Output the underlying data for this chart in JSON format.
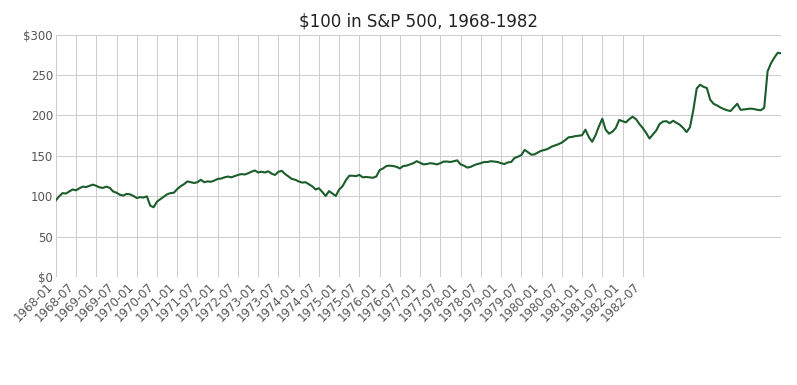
{
  "title": "$100 in S&P 500, 1968-1982",
  "line_color": "#1a5c2a",
  "line_width": 1.5,
  "background_color": "#ffffff",
  "grid_color": "#cccccc",
  "ylim": [
    0,
    300
  ],
  "yticks": [
    0,
    50,
    100,
    150,
    200,
    250,
    300
  ],
  "ytick_labels": [
    "$0",
    "50",
    "100",
    "150",
    "200",
    "250",
    "$300"
  ],
  "title_fontsize": 12,
  "tick_fontsize": 8.5,
  "values": [
    95.0,
    100.0,
    104.0,
    103.5,
    106.0,
    108.5,
    107.5,
    110.0,
    112.0,
    111.5,
    113.0,
    114.5,
    113.0,
    111.0,
    110.5,
    112.0,
    110.5,
    106.0,
    104.5,
    102.0,
    101.0,
    103.0,
    102.5,
    100.5,
    98.0,
    99.0,
    98.5,
    100.0,
    88.5,
    86.5,
    93.5,
    96.5,
    99.5,
    102.5,
    104.0,
    104.5,
    109.0,
    112.5,
    115.0,
    118.5,
    117.5,
    116.5,
    117.5,
    120.5,
    117.5,
    118.5,
    118.0,
    119.5,
    121.5,
    122.0,
    123.5,
    124.5,
    123.5,
    125.0,
    126.5,
    127.5,
    127.0,
    128.5,
    130.5,
    132.0,
    129.5,
    130.5,
    129.5,
    131.0,
    128.0,
    126.5,
    130.5,
    131.5,
    127.5,
    124.5,
    121.5,
    120.5,
    118.5,
    117.0,
    117.5,
    115.0,
    112.5,
    108.5,
    110.0,
    105.5,
    100.5,
    106.5,
    103.5,
    100.5,
    108.5,
    112.5,
    120.0,
    125.5,
    125.5,
    125.0,
    126.5,
    123.5,
    124.0,
    123.5,
    123.0,
    124.5,
    132.5,
    134.5,
    137.5,
    138.0,
    137.5,
    136.5,
    134.5,
    137.5,
    138.0,
    139.5,
    141.0,
    143.5,
    141.5,
    139.5,
    140.0,
    141.0,
    140.5,
    139.5,
    141.0,
    143.0,
    143.0,
    142.5,
    143.5,
    144.5,
    139.5,
    138.0,
    135.5,
    136.5,
    138.5,
    140.0,
    141.0,
    142.5,
    142.5,
    143.5,
    143.0,
    142.5,
    141.0,
    140.0,
    142.0,
    142.5,
    147.5,
    149.0,
    151.0,
    157.5,
    154.5,
    151.5,
    152.0,
    154.5,
    156.5,
    157.5,
    159.0,
    161.5,
    163.0,
    164.5,
    166.5,
    169.5,
    173.0,
    173.5,
    174.5,
    175.0,
    175.5,
    182.5,
    173.5,
    167.5,
    175.5,
    186.5,
    196.0,
    182.5,
    177.5,
    180.0,
    184.5,
    194.5,
    193.0,
    191.5,
    195.5,
    198.5,
    195.5,
    189.5,
    184.5,
    178.5,
    171.5,
    176.5,
    181.5,
    189.5,
    192.5,
    193.0,
    190.5,
    193.5,
    191.0,
    188.5,
    184.5,
    179.5,
    185.5,
    207.0,
    233.5,
    238.0,
    235.5,
    234.0,
    219.5,
    214.5,
    212.5,
    210.0,
    208.0,
    206.5,
    205.5,
    210.0,
    214.5,
    207.0,
    207.5,
    208.0,
    208.5,
    208.0,
    207.0,
    206.5,
    209.5,
    254.5,
    264.5,
    271.5,
    277.5,
    277.0
  ],
  "xtick_positions": [
    0,
    6,
    12,
    18,
    24,
    30,
    36,
    42,
    48,
    54,
    60,
    66,
    72,
    78,
    84,
    90,
    96,
    102,
    108,
    114,
    120,
    126,
    132,
    138,
    144,
    150,
    156,
    162,
    168,
    174
  ],
  "xtick_labels": [
    "1968-01",
    "1968-07",
    "1969-01",
    "1969-07",
    "1970-01",
    "1970-07",
    "1971-01",
    "1971-07",
    "1972-01",
    "1972-07",
    "1973-01",
    "1973-07",
    "1974-01",
    "1974-07",
    "1975-01",
    "1975-07",
    "1976-01",
    "1976-07",
    "1977-01",
    "1977-07",
    "1978-01",
    "1978-07",
    "1979-01",
    "1979-07",
    "1980-01",
    "1980-07",
    "1981-01",
    "1981-07",
    "1982-01",
    "1982-07"
  ]
}
